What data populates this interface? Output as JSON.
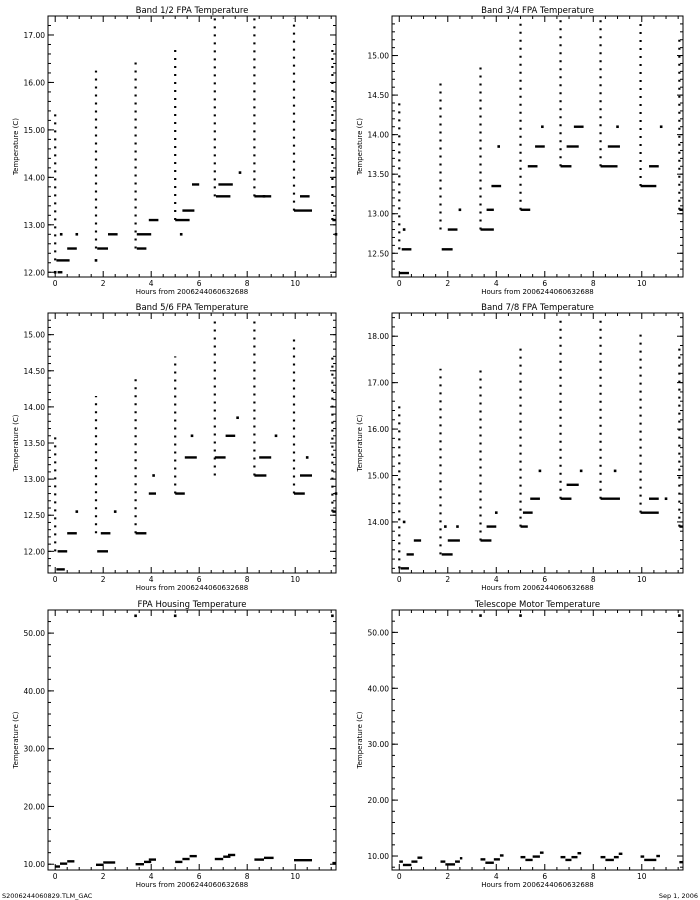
{
  "footer": {
    "left": "S2006244060829.TLM_GAC",
    "right": "Sep  1, 2006"
  },
  "chart_data": [
    {
      "type": "scatter",
      "title": "Band 1/2 FPA Temperature",
      "xlabel": "Hours from 2006244060632688",
      "ylabel": "Temperature (C)",
      "xlim": [
        -0.3,
        11.7
      ],
      "ylim": [
        11.9,
        17.4
      ],
      "xticks": [
        0,
        2,
        4,
        6,
        8,
        10
      ],
      "xtick_labels": [
        "0",
        "2",
        "4",
        "6",
        "8",
        "10"
      ],
      "yticks": [
        12,
        13,
        14,
        15,
        16,
        17
      ],
      "ytick_labels": [
        "12.00",
        "13.00",
        "14.00",
        "15.00",
        "16.00",
        "17.00"
      ],
      "spikes": [
        {
          "x": 0.0,
          "min": 12.25,
          "max": 15.4
        },
        {
          "x": 1.7,
          "min": 12.5,
          "max": 16.25
        },
        {
          "x": 3.35,
          "min": 12.5,
          "max": 16.5
        },
        {
          "x": 5.0,
          "min": 13.1,
          "max": 16.75
        },
        {
          "x": 6.65,
          "min": 13.6,
          "max": 17.35
        },
        {
          "x": 8.3,
          "min": 13.6,
          "max": 17.35
        },
        {
          "x": 9.95,
          "min": 13.3,
          "max": 17.35
        },
        {
          "x": 11.55,
          "min": 13.1,
          "max": 16.75
        }
      ],
      "segments": [
        {
          "x0": 0.05,
          "x1": 0.6,
          "y": 12.25
        },
        {
          "x0": 0.1,
          "x1": 0.3,
          "y": 12.0
        },
        {
          "x0": 0.5,
          "x1": 0.9,
          "y": 12.5
        },
        {
          "x0": 1.75,
          "x1": 2.2,
          "y": 12.5
        },
        {
          "x0": 2.2,
          "x1": 2.6,
          "y": 12.8
        },
        {
          "x0": 3.4,
          "x1": 3.8,
          "y": 12.5
        },
        {
          "x0": 3.4,
          "x1": 4.0,
          "y": 12.8
        },
        {
          "x0": 3.9,
          "x1": 4.3,
          "y": 13.1
        },
        {
          "x0": 5.0,
          "x1": 5.6,
          "y": 13.1
        },
        {
          "x0": 5.3,
          "x1": 5.8,
          "y": 13.3
        },
        {
          "x0": 5.7,
          "x1": 6.0,
          "y": 13.85
        },
        {
          "x0": 6.7,
          "x1": 7.3,
          "y": 13.6
        },
        {
          "x0": 6.8,
          "x1": 7.4,
          "y": 13.85
        },
        {
          "x0": 8.3,
          "x1": 9.0,
          "y": 13.6
        },
        {
          "x0": 9.95,
          "x1": 10.7,
          "y": 13.3
        },
        {
          "x0": 10.2,
          "x1": 10.6,
          "y": 13.6
        },
        {
          "x0": 11.55,
          "x1": 11.7,
          "y": 13.1
        }
      ],
      "points": [
        {
          "x": 0.0,
          "y": 12.0
        },
        {
          "x": 0.25,
          "y": 12.8
        },
        {
          "x": 0.9,
          "y": 12.8
        },
        {
          "x": 1.7,
          "y": 12.25
        },
        {
          "x": 5.25,
          "y": 12.8
        },
        {
          "x": 7.7,
          "y": 14.1
        },
        {
          "x": 8.7,
          "y": 13.6
        },
        {
          "x": 11.7,
          "y": 12.8
        }
      ]
    },
    {
      "type": "scatter",
      "title": "Band 3/4 FPA Temperature",
      "xlabel": "Hours from 2006244060632688",
      "ylabel": "Temperature (C)",
      "xlim": [
        -0.3,
        11.7
      ],
      "ylim": [
        12.2,
        15.5
      ],
      "xticks": [
        0,
        2,
        4,
        6,
        8,
        10
      ],
      "xtick_labels": [
        "0",
        "2",
        "4",
        "6",
        "8",
        "10"
      ],
      "yticks": [
        12.5,
        13.0,
        13.5,
        14.0,
        14.5,
        15.0
      ],
      "ytick_labels": [
        "12.50",
        "13.00",
        "13.50",
        "14.00",
        "14.50",
        "15.00"
      ],
      "spikes": [
        {
          "x": 0.0,
          "min": 12.55,
          "max": 14.4
        },
        {
          "x": 1.7,
          "min": 12.8,
          "max": 14.65
        },
        {
          "x": 3.35,
          "min": 12.8,
          "max": 14.9
        },
        {
          "x": 5.0,
          "min": 13.05,
          "max": 15.45
        },
        {
          "x": 6.65,
          "min": 13.6,
          "max": 15.45
        },
        {
          "x": 8.3,
          "min": 13.6,
          "max": 15.45
        },
        {
          "x": 9.95,
          "min": 13.35,
          "max": 15.45
        },
        {
          "x": 11.55,
          "min": 13.05,
          "max": 15.2
        }
      ],
      "segments": [
        {
          "x0": 0.0,
          "x1": 0.4,
          "y": 12.25
        },
        {
          "x0": 0.1,
          "x1": 0.5,
          "y": 12.55
        },
        {
          "x0": 1.75,
          "x1": 2.2,
          "y": 12.55
        },
        {
          "x0": 2.0,
          "x1": 2.4,
          "y": 12.8
        },
        {
          "x0": 3.35,
          "x1": 3.9,
          "y": 12.8
        },
        {
          "x0": 3.6,
          "x1": 3.9,
          "y": 13.05
        },
        {
          "x0": 3.8,
          "x1": 4.2,
          "y": 13.35
        },
        {
          "x0": 5.0,
          "x1": 5.4,
          "y": 13.05
        },
        {
          "x0": 5.3,
          "x1": 5.7,
          "y": 13.6
        },
        {
          "x0": 5.6,
          "x1": 6.0,
          "y": 13.85
        },
        {
          "x0": 6.65,
          "x1": 7.1,
          "y": 13.6
        },
        {
          "x0": 6.9,
          "x1": 7.4,
          "y": 13.85
        },
        {
          "x0": 7.2,
          "x1": 7.6,
          "y": 14.1
        },
        {
          "x0": 8.3,
          "x1": 9.0,
          "y": 13.6
        },
        {
          "x0": 8.6,
          "x1": 9.1,
          "y": 13.85
        },
        {
          "x0": 9.95,
          "x1": 10.6,
          "y": 13.35
        },
        {
          "x0": 10.3,
          "x1": 10.7,
          "y": 13.6
        },
        {
          "x0": 11.55,
          "x1": 11.7,
          "y": 13.05
        }
      ],
      "points": [
        {
          "x": 0.2,
          "y": 12.8
        },
        {
          "x": 2.5,
          "y": 13.05
        },
        {
          "x": 4.1,
          "y": 13.85
        },
        {
          "x": 5.9,
          "y": 14.1
        },
        {
          "x": 9.0,
          "y": 14.1
        },
        {
          "x": 10.8,
          "y": 14.1
        }
      ]
    },
    {
      "type": "scatter",
      "title": "Band 5/6 FPA Temperature",
      "xlabel": "Hours from 2006244060632688",
      "ylabel": "Temperature (C)",
      "xlim": [
        -0.3,
        11.7
      ],
      "ylim": [
        11.7,
        15.3
      ],
      "xticks": [
        0,
        2,
        4,
        6,
        8,
        10
      ],
      "xtick_labels": [
        "0",
        "2",
        "4",
        "6",
        "8",
        "10"
      ],
      "yticks": [
        12.0,
        12.5,
        13.0,
        13.5,
        14.0,
        14.5,
        15.0
      ],
      "ytick_labels": [
        "12.00",
        "12.50",
        "13.00",
        "13.50",
        "14.00",
        "14.50",
        "15.00"
      ],
      "spikes": [
        {
          "x": 0.0,
          "min": 12.0,
          "max": 13.6
        },
        {
          "x": 1.7,
          "min": 12.25,
          "max": 14.15
        },
        {
          "x": 3.35,
          "min": 12.25,
          "max": 14.4
        },
        {
          "x": 5.0,
          "min": 12.8,
          "max": 14.7
        },
        {
          "x": 6.65,
          "min": 13.05,
          "max": 15.2
        },
        {
          "x": 8.3,
          "min": 13.05,
          "max": 15.2
        },
        {
          "x": 9.95,
          "min": 12.8,
          "max": 14.95
        },
        {
          "x": 11.55,
          "min": 12.55,
          "max": 14.7
        }
      ],
      "segments": [
        {
          "x0": 0.05,
          "x1": 0.4,
          "y": 11.75
        },
        {
          "x0": 0.1,
          "x1": 0.5,
          "y": 12.0
        },
        {
          "x0": 0.5,
          "x1": 0.9,
          "y": 12.25
        },
        {
          "x0": 1.75,
          "x1": 2.2,
          "y": 12.0
        },
        {
          "x0": 1.9,
          "x1": 2.3,
          "y": 12.25
        },
        {
          "x0": 3.35,
          "x1": 3.8,
          "y": 12.25
        },
        {
          "x0": 3.9,
          "x1": 4.2,
          "y": 12.8
        },
        {
          "x0": 5.0,
          "x1": 5.4,
          "y": 12.8
        },
        {
          "x0": 5.4,
          "x1": 5.9,
          "y": 13.3
        },
        {
          "x0": 6.65,
          "x1": 7.1,
          "y": 13.3
        },
        {
          "x0": 7.1,
          "x1": 7.5,
          "y": 13.6
        },
        {
          "x0": 8.3,
          "x1": 8.8,
          "y": 13.05
        },
        {
          "x0": 8.5,
          "x1": 9.0,
          "y": 13.3
        },
        {
          "x0": 9.95,
          "x1": 10.4,
          "y": 12.8
        },
        {
          "x0": 10.2,
          "x1": 10.7,
          "y": 13.05
        },
        {
          "x0": 11.55,
          "x1": 11.7,
          "y": 12.55
        }
      ],
      "points": [
        {
          "x": 0.9,
          "y": 12.55
        },
        {
          "x": 2.5,
          "y": 12.55
        },
        {
          "x": 4.1,
          "y": 13.05
        },
        {
          "x": 5.7,
          "y": 13.6
        },
        {
          "x": 7.6,
          "y": 13.85
        },
        {
          "x": 9.2,
          "y": 13.6
        },
        {
          "x": 10.5,
          "y": 13.3
        },
        {
          "x": 11.7,
          "y": 12.8
        }
      ]
    },
    {
      "type": "scatter",
      "title": "Band 7/8 FPA Temperature",
      "xlabel": "Hours from 2006244060632688",
      "ylabel": "Temperature (C)",
      "xlim": [
        -0.3,
        11.7
      ],
      "ylim": [
        12.9,
        18.5
      ],
      "xticks": [
        0,
        2,
        4,
        6,
        8,
        10
      ],
      "xtick_labels": [
        "0",
        "2",
        "4",
        "6",
        "8",
        "10"
      ],
      "yticks": [
        14,
        15,
        16,
        17,
        18
      ],
      "ytick_labels": [
        "14.00",
        "15.00",
        "16.00",
        "17.00",
        "18.00"
      ],
      "spikes": [
        {
          "x": 0.0,
          "min": 13.0,
          "max": 16.5
        },
        {
          "x": 1.7,
          "min": 13.3,
          "max": 17.3
        },
        {
          "x": 3.35,
          "min": 13.6,
          "max": 17.3
        },
        {
          "x": 5.0,
          "min": 13.9,
          "max": 17.8
        },
        {
          "x": 6.65,
          "min": 14.5,
          "max": 18.4
        },
        {
          "x": 8.3,
          "min": 14.5,
          "max": 18.4
        },
        {
          "x": 9.95,
          "min": 14.2,
          "max": 18.1
        },
        {
          "x": 11.55,
          "min": 13.9,
          "max": 17.8
        }
      ],
      "segments": [
        {
          "x0": 0.05,
          "x1": 0.4,
          "y": 13.0
        },
        {
          "x0": 0.3,
          "x1": 0.6,
          "y": 13.3
        },
        {
          "x0": 0.6,
          "x1": 0.9,
          "y": 13.6
        },
        {
          "x0": 1.75,
          "x1": 2.2,
          "y": 13.3
        },
        {
          "x0": 2.0,
          "x1": 2.5,
          "y": 13.6
        },
        {
          "x0": 3.35,
          "x1": 3.8,
          "y": 13.6
        },
        {
          "x0": 3.6,
          "x1": 4.0,
          "y": 13.9
        },
        {
          "x0": 5.0,
          "x1": 5.3,
          "y": 13.9
        },
        {
          "x0": 5.1,
          "x1": 5.5,
          "y": 14.2
        },
        {
          "x0": 5.4,
          "x1": 5.8,
          "y": 14.5
        },
        {
          "x0": 6.65,
          "x1": 7.1,
          "y": 14.5
        },
        {
          "x0": 6.9,
          "x1": 7.4,
          "y": 14.8
        },
        {
          "x0": 8.3,
          "x1": 9.1,
          "y": 14.5
        },
        {
          "x0": 9.95,
          "x1": 10.7,
          "y": 14.2
        },
        {
          "x0": 10.3,
          "x1": 10.7,
          "y": 14.5
        },
        {
          "x0": 11.55,
          "x1": 11.7,
          "y": 13.9
        }
      ],
      "points": [
        {
          "x": 0.2,
          "y": 14.0
        },
        {
          "x": 1.9,
          "y": 13.9
        },
        {
          "x": 2.4,
          "y": 13.9
        },
        {
          "x": 4.0,
          "y": 14.2
        },
        {
          "x": 5.8,
          "y": 15.1
        },
        {
          "x": 7.5,
          "y": 15.1
        },
        {
          "x": 8.9,
          "y": 15.1
        },
        {
          "x": 11.0,
          "y": 14.5
        }
      ]
    },
    {
      "type": "scatter",
      "title": "FPA Housing Temperature",
      "xlabel": "Hours from 2006244060632688",
      "ylabel": "Temperature (C)",
      "xlim": [
        -0.3,
        11.7
      ],
      "ylim": [
        9.0,
        54.0
      ],
      "xticks": [
        0,
        2,
        4,
        6,
        8,
        10
      ],
      "xtick_labels": [
        "0",
        "2",
        "4",
        "6",
        "8",
        "10"
      ],
      "yticks": [
        10,
        20,
        30,
        40,
        50
      ],
      "ytick_labels": [
        "10.00",
        "20.00",
        "30.00",
        "40.00",
        "50.00"
      ],
      "spikes": [],
      "segments": [
        {
          "x0": 0.0,
          "x1": 0.2,
          "y": 9.6
        },
        {
          "x0": 0.2,
          "x1": 0.5,
          "y": 10.1
        },
        {
          "x0": 0.5,
          "x1": 0.8,
          "y": 10.5
        },
        {
          "x0": 1.7,
          "x1": 2.0,
          "y": 9.9
        },
        {
          "x0": 2.0,
          "x1": 2.5,
          "y": 10.3
        },
        {
          "x0": 3.35,
          "x1": 3.7,
          "y": 10.0
        },
        {
          "x0": 3.7,
          "x1": 4.0,
          "y": 10.4
        },
        {
          "x0": 3.9,
          "x1": 4.2,
          "y": 10.8
        },
        {
          "x0": 5.0,
          "x1": 5.3,
          "y": 10.4
        },
        {
          "x0": 5.3,
          "x1": 5.6,
          "y": 10.9
        },
        {
          "x0": 5.6,
          "x1": 5.9,
          "y": 11.4
        },
        {
          "x0": 6.65,
          "x1": 7.0,
          "y": 10.9
        },
        {
          "x0": 7.0,
          "x1": 7.3,
          "y": 11.3
        },
        {
          "x0": 7.2,
          "x1": 7.5,
          "y": 11.6
        },
        {
          "x0": 8.3,
          "x1": 8.7,
          "y": 10.8
        },
        {
          "x0": 8.7,
          "x1": 9.1,
          "y": 11.1
        },
        {
          "x0": 9.95,
          "x1": 10.7,
          "y": 10.7
        },
        {
          "x0": 11.55,
          "x1": 11.7,
          "y": 10.2
        }
      ],
      "points": [
        {
          "x": 3.35,
          "y": 53.0
        },
        {
          "x": 5.0,
          "y": 53.0
        },
        {
          "x": 11.55,
          "y": 53.0
        }
      ]
    },
    {
      "type": "scatter",
      "title": "Telescope Motor Temperature",
      "xlabel": "Hours from 2006244060632688",
      "ylabel": "Temperature (C)",
      "xlim": [
        -0.3,
        11.7
      ],
      "ylim": [
        7.5,
        54.0
      ],
      "xticks": [
        0,
        2,
        4,
        6,
        8,
        10
      ],
      "xtick_labels": [
        "0",
        "2",
        "4",
        "6",
        "8",
        "10"
      ],
      "yticks": [
        10,
        20,
        30,
        40,
        50
      ],
      "ytick_labels": [
        "10.00",
        "20.00",
        "30.00",
        "40.00",
        "50.00"
      ],
      "spikes": [],
      "segments": [
        {
          "x0": 0.0,
          "x1": 0.15,
          "y": 9.0
        },
        {
          "x0": 0.15,
          "x1": 0.5,
          "y": 8.4
        },
        {
          "x0": 0.5,
          "x1": 0.75,
          "y": 9.0
        },
        {
          "x0": 0.75,
          "x1": 0.95,
          "y": 9.7
        },
        {
          "x0": 1.7,
          "x1": 1.9,
          "y": 9.0
        },
        {
          "x0": 1.9,
          "x1": 2.3,
          "y": 8.5
        },
        {
          "x0": 2.3,
          "x1": 2.5,
          "y": 9.0
        },
        {
          "x0": 2.5,
          "x1": 2.6,
          "y": 9.6
        },
        {
          "x0": 3.35,
          "x1": 3.55,
          "y": 9.4
        },
        {
          "x0": 3.55,
          "x1": 3.9,
          "y": 8.8
        },
        {
          "x0": 3.9,
          "x1": 4.15,
          "y": 9.4
        },
        {
          "x0": 4.15,
          "x1": 4.3,
          "y": 10.1
        },
        {
          "x0": 5.0,
          "x1": 5.2,
          "y": 9.8
        },
        {
          "x0": 5.2,
          "x1": 5.5,
          "y": 9.3
        },
        {
          "x0": 5.5,
          "x1": 5.8,
          "y": 9.9
        },
        {
          "x0": 5.8,
          "x1": 5.95,
          "y": 10.6
        },
        {
          "x0": 6.65,
          "x1": 6.85,
          "y": 9.8
        },
        {
          "x0": 6.85,
          "x1": 7.1,
          "y": 9.3
        },
        {
          "x0": 7.1,
          "x1": 7.35,
          "y": 9.8
        },
        {
          "x0": 7.35,
          "x1": 7.5,
          "y": 10.5
        },
        {
          "x0": 8.3,
          "x1": 8.5,
          "y": 9.8
        },
        {
          "x0": 8.5,
          "x1": 8.85,
          "y": 9.3
        },
        {
          "x0": 8.85,
          "x1": 9.05,
          "y": 9.8
        },
        {
          "x0": 9.05,
          "x1": 9.2,
          "y": 10.4
        },
        {
          "x0": 9.95,
          "x1": 10.1,
          "y": 9.9
        },
        {
          "x0": 10.1,
          "x1": 10.6,
          "y": 9.3
        },
        {
          "x0": 10.6,
          "x1": 10.75,
          "y": 10.0
        },
        {
          "x0": 11.55,
          "x1": 11.7,
          "y": 8.9
        }
      ],
      "points": [
        {
          "x": 3.35,
          "y": 53.0
        },
        {
          "x": 5.0,
          "y": 53.0
        },
        {
          "x": 11.55,
          "y": 53.0
        }
      ]
    }
  ]
}
